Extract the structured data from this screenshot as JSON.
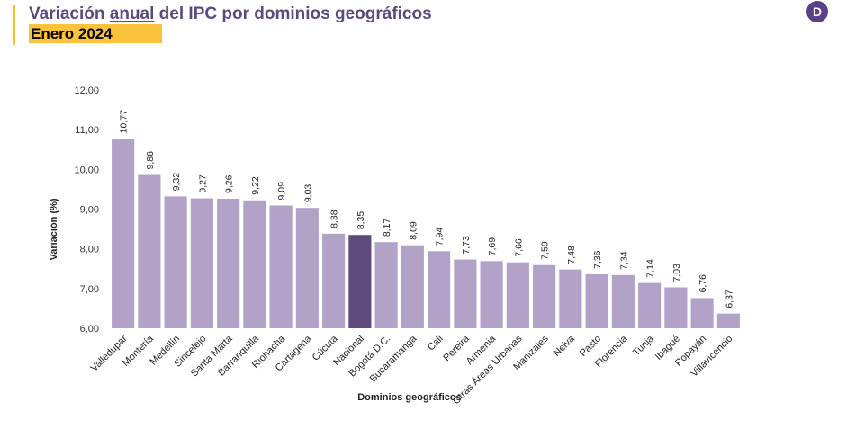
{
  "header": {
    "title_pre": "Variación ",
    "title_underlined": "anual",
    "title_post": " del IPC por dominios geográficos",
    "subtitle": "Enero 2024",
    "logo_letter": "D"
  },
  "colors": {
    "bar": "#b3a2c8",
    "bar_highlight": "#5e4a7c",
    "title": "#5b4a7c",
    "subtitle_bg": "#fbc23b",
    "accent": "#f4c22b"
  },
  "chart_data": {
    "type": "bar",
    "title": "Variación anual del IPC por dominios geográficos",
    "subtitle": "Enero 2024",
    "xlabel": "Dominios geográficos",
    "ylabel": "Variación (%)",
    "ylim": [
      6,
      12
    ],
    "yticks": [
      "6,00",
      "7,00",
      "8,00",
      "9,00",
      "10,00",
      "11,00",
      "12,00"
    ],
    "grid": false,
    "highlight": "Nacional",
    "categories": [
      "Valledupar",
      "Montería",
      "Medellín",
      "Sincelejo",
      "Santa Marta",
      "Barranquilla",
      "Riohacha",
      "Cartagena",
      "Cúcuta",
      "Nacional",
      "Bogotá D.C.",
      "Bucaramanga",
      "Cali",
      "Pereira",
      "Armenia",
      "Otras Áreas Urbanas",
      "Manizales",
      "Neiva",
      "Pasto",
      "Florencia",
      "Tunja",
      "Ibagué",
      "Popayán",
      "Villavicencio"
    ],
    "values": [
      10.77,
      9.86,
      9.32,
      9.27,
      9.26,
      9.22,
      9.09,
      9.03,
      8.38,
      8.35,
      8.17,
      8.09,
      7.94,
      7.73,
      7.69,
      7.66,
      7.59,
      7.48,
      7.36,
      7.34,
      7.14,
      7.03,
      6.76,
      6.37
    ],
    "labels": [
      "10,77",
      "9,86",
      "9,32",
      "9,27",
      "9,26",
      "9,22",
      "9,09",
      "9,03",
      "8,38",
      "8,35",
      "8,17",
      "8,09",
      "7,94",
      "7,73",
      "7,69",
      "7,66",
      "7,59",
      "7,48",
      "7,36",
      "7,34",
      "7,14",
      "7,03",
      "6,76",
      "6,37"
    ]
  }
}
